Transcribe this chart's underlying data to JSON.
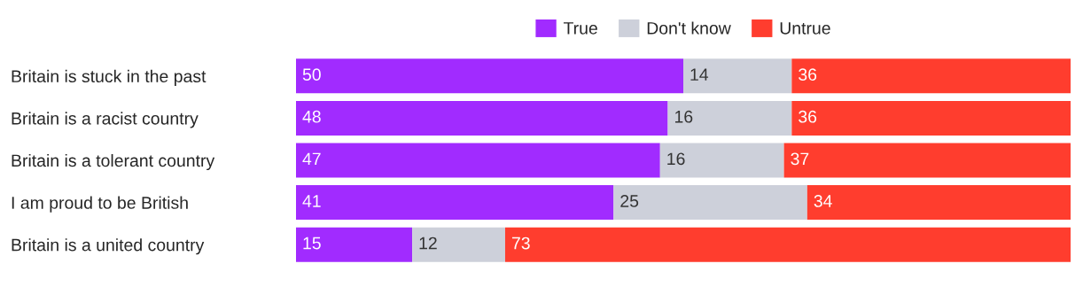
{
  "chart_data": {
    "type": "bar",
    "orientation": "horizontal",
    "stacked": true,
    "data_labels": true,
    "legend": "top",
    "grid": false,
    "categories": [
      "Britain is stuck in the past",
      "Britain is a racist country",
      "Britain is a tolerant country",
      "I am proud to be British",
      "Britain is a united country"
    ],
    "series": [
      {
        "name": "True",
        "color": "#a12bff",
        "values": [
          50,
          48,
          47,
          41,
          15
        ]
      },
      {
        "name": "Don't know",
        "color": "#cdd0da",
        "values": [
          14,
          16,
          16,
          25,
          12
        ]
      },
      {
        "name": "Untrue",
        "color": "#ff3d2e",
        "values": [
          36,
          36,
          37,
          34,
          73
        ]
      }
    ]
  }
}
